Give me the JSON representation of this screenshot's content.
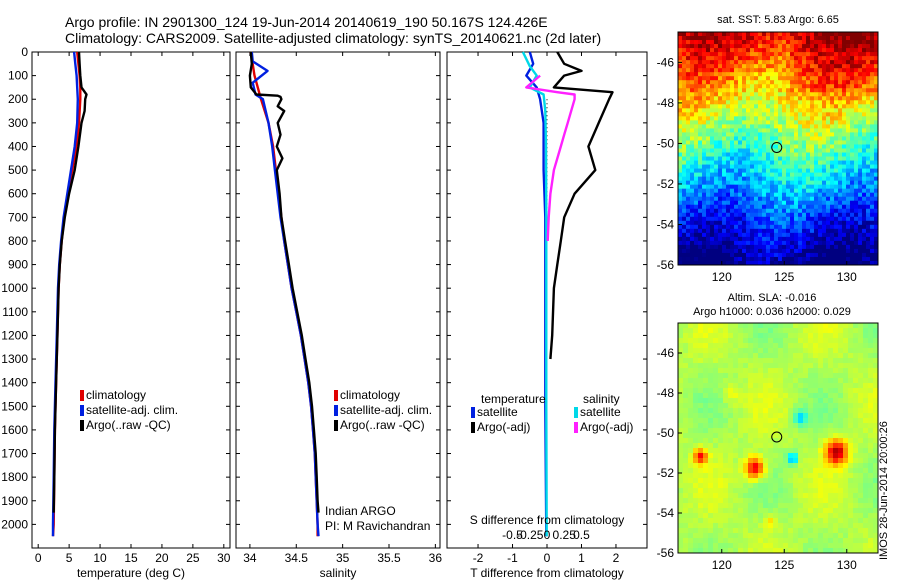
{
  "header": {
    "line1": "Argo profile: IN 2901300_124 19-Jun-2014 20140619_190 50.167S 124.426E",
    "line2": "Climatology: CARS2009. Satellite-adjusted climatology: synTS_20140621.nc (2d later)"
  },
  "stamp": "IMOS 28-Jun-2014 20:00:26",
  "colors": {
    "climatology": "#e00000",
    "satellite_clim": "#0020e0",
    "argo": "#000000",
    "satellite_S": "#00d8e8",
    "argo_S": "#ff20ff"
  },
  "chart_data": [
    {
      "type": "line",
      "panel": "temperature",
      "xlabel": "temperature (deg C)",
      "ylabel": "",
      "xlim": [
        -1,
        31
      ],
      "ylim": [
        2100,
        0
      ],
      "xticks": [
        "0",
        "5",
        "10",
        "15",
        "20",
        "25",
        "30"
      ],
      "yticks": [
        "0",
        "100",
        "200",
        "300",
        "400",
        "500",
        "600",
        "700",
        "800",
        "900",
        "1000",
        "1100",
        "1200",
        "1300",
        "1400",
        "1500",
        "1600",
        "1700",
        "1800",
        "1900",
        "2000"
      ],
      "legend": [
        "climatology",
        "satellite-adj. clim.",
        "Argo(..raw -QC)"
      ],
      "series": [
        {
          "name": "climatology",
          "color": "#e00000",
          "points": [
            [
              6.3,
              0
            ],
            [
              6.5,
              50
            ],
            [
              6.7,
              100
            ],
            [
              6.8,
              150
            ],
            [
              6.8,
              200
            ],
            [
              6.6,
              300
            ],
            [
              6.2,
              400
            ],
            [
              5.5,
              500
            ],
            [
              4.8,
              600
            ],
            [
              4.2,
              700
            ],
            [
              3.8,
              800
            ],
            [
              3.5,
              900
            ],
            [
              3.3,
              1000
            ],
            [
              3.1,
              1200
            ],
            [
              2.9,
              1400
            ],
            [
              2.7,
              1600
            ],
            [
              2.6,
              1800
            ],
            [
              2.5,
              2000
            ],
            [
              2.4,
              2050
            ]
          ]
        },
        {
          "name": "satellite-adj. clim.",
          "color": "#0020e0",
          "points": [
            [
              5.8,
              0
            ],
            [
              6.0,
              50
            ],
            [
              6.2,
              100
            ],
            [
              6.3,
              150
            ],
            [
              6.4,
              200
            ],
            [
              6.3,
              300
            ],
            [
              5.9,
              400
            ],
            [
              5.3,
              500
            ],
            [
              4.7,
              600
            ],
            [
              4.1,
              700
            ],
            [
              3.7,
              800
            ],
            [
              3.4,
              900
            ],
            [
              3.2,
              1000
            ],
            [
              3.0,
              1200
            ],
            [
              2.8,
              1400
            ],
            [
              2.6,
              1600
            ],
            [
              2.5,
              1800
            ],
            [
              2.4,
              2000
            ],
            [
              2.4,
              2050
            ]
          ]
        },
        {
          "name": "Argo(..raw -QC)",
          "color": "#000000",
          "points": [
            [
              6.6,
              0
            ],
            [
              6.7,
              50
            ],
            [
              6.8,
              100
            ],
            [
              7.0,
              150
            ],
            [
              7.8,
              180
            ],
            [
              7.6,
              200
            ],
            [
              7.5,
              250
            ],
            [
              7.0,
              300
            ],
            [
              6.5,
              400
            ],
            [
              5.9,
              500
            ],
            [
              5.0,
              600
            ],
            [
              4.3,
              700
            ],
            [
              3.8,
              800
            ],
            [
              3.5,
              900
            ],
            [
              3.3,
              1000
            ],
            [
              3.1,
              1200
            ],
            [
              2.9,
              1400
            ],
            [
              2.7,
              1600
            ],
            [
              2.6,
              1800
            ],
            [
              2.5,
              1950
            ]
          ]
        }
      ]
    },
    {
      "type": "line",
      "panel": "salinity",
      "xlabel": "salinity",
      "ylabel": "",
      "xlim": [
        33.85,
        36.05
      ],
      "ylim": [
        2100,
        0
      ],
      "xticks": [
        "34",
        "34.5",
        "35",
        "35.5",
        "36"
      ],
      "legend": [
        "climatology",
        "satellite-adj. clim.",
        "Argo(..raw -QC)"
      ],
      "annotation": [
        "Indian ARGO",
        "PI: M Ravichandran"
      ],
      "series": [
        {
          "name": "climatology",
          "color": "#e00000",
          "points": [
            [
              34.01,
              0
            ],
            [
              34.05,
              100
            ],
            [
              34.12,
              200
            ],
            [
              34.2,
              300
            ],
            [
              34.25,
              400
            ],
            [
              34.28,
              500
            ],
            [
              34.31,
              600
            ],
            [
              34.34,
              700
            ],
            [
              34.37,
              800
            ],
            [
              34.41,
              900
            ],
            [
              34.45,
              1000
            ],
            [
              34.5,
              1100
            ],
            [
              34.55,
              1200
            ],
            [
              34.59,
              1300
            ],
            [
              34.63,
              1400
            ],
            [
              34.66,
              1500
            ],
            [
              34.68,
              1600
            ],
            [
              34.7,
              1700
            ],
            [
              34.71,
              1800
            ],
            [
              34.72,
              1900
            ],
            [
              34.73,
              2000
            ],
            [
              34.73,
              2050
            ]
          ]
        },
        {
          "name": "satellite-adj. clim.",
          "color": "#0020e0",
          "points": [
            [
              34.02,
              0
            ],
            [
              34.03,
              40
            ],
            [
              34.19,
              80
            ],
            [
              34.03,
              130
            ],
            [
              34.06,
              180
            ],
            [
              34.14,
              200
            ],
            [
              34.2,
              300
            ],
            [
              34.24,
              400
            ],
            [
              34.27,
              500
            ],
            [
              34.3,
              600
            ],
            [
              34.33,
              700
            ],
            [
              34.37,
              800
            ],
            [
              34.41,
              900
            ],
            [
              34.45,
              1000
            ],
            [
              34.5,
              1100
            ],
            [
              34.55,
              1200
            ],
            [
              34.59,
              1300
            ],
            [
              34.63,
              1400
            ],
            [
              34.66,
              1500
            ],
            [
              34.68,
              1600
            ],
            [
              34.7,
              1700
            ],
            [
              34.71,
              1800
            ],
            [
              34.72,
              1900
            ],
            [
              34.73,
              2000
            ],
            [
              34.74,
              2050
            ]
          ]
        },
        {
          "name": "Argo(..raw -QC)",
          "color": "#000000",
          "points": [
            [
              34.01,
              0
            ],
            [
              34.02,
              50
            ],
            [
              34.0,
              100
            ],
            [
              34.01,
              150
            ],
            [
              34.07,
              180
            ],
            [
              34.3,
              185
            ],
            [
              34.33,
              190
            ],
            [
              34.34,
              200
            ],
            [
              34.3,
              230
            ],
            [
              34.37,
              250
            ],
            [
              34.3,
              300
            ],
            [
              34.33,
              350
            ],
            [
              34.29,
              400
            ],
            [
              34.35,
              450
            ],
            [
              34.29,
              500
            ],
            [
              34.32,
              600
            ],
            [
              34.34,
              700
            ],
            [
              34.38,
              800
            ],
            [
              34.42,
              900
            ],
            [
              34.46,
              1000
            ],
            [
              34.51,
              1100
            ],
            [
              34.56,
              1200
            ],
            [
              34.6,
              1300
            ],
            [
              34.64,
              1400
            ],
            [
              34.67,
              1500
            ],
            [
              34.69,
              1600
            ],
            [
              34.71,
              1700
            ],
            [
              34.72,
              1800
            ],
            [
              34.73,
              1900
            ],
            [
              34.74,
              1950
            ]
          ]
        }
      ]
    },
    {
      "type": "line",
      "panel": "differences",
      "xlabel": "T difference from climatology",
      "xlabel_top": "S difference from climatology",
      "xlim": [
        -2.9,
        2.9
      ],
      "ylim": [
        2100,
        0
      ],
      "xticks": [
        "-2",
        "-1",
        "0",
        "1",
        "2"
      ],
      "xticks_S": [
        "-0.5",
        "-0.25",
        "0",
        "0.25",
        "0.5"
      ],
      "legend_titles": [
        "temperature",
        "salinity"
      ],
      "legend": [
        "satellite",
        "Argo(-adj)",
        "satellite",
        "Argo(-adj)"
      ],
      "series": [
        {
          "name": "satellite",
          "color": "#0020e0",
          "points": [
            [
              -0.5,
              0
            ],
            [
              -0.4,
              50
            ],
            [
              -0.6,
              100
            ],
            [
              -0.3,
              150
            ],
            [
              -0.2,
              200
            ],
            [
              -0.1,
              300
            ],
            [
              -0.1,
              400
            ],
            [
              -0.1,
              500
            ],
            [
              -0.05,
              700
            ],
            [
              -0.05,
              1000
            ],
            [
              -0.05,
              1500
            ],
            [
              -0.02,
              2050
            ]
          ]
        },
        {
          "name": "Argo(-adj)",
          "color": "#000000",
          "points": [
            [
              0.3,
              0
            ],
            [
              0.5,
              50
            ],
            [
              1.0,
              80
            ],
            [
              0.5,
              100
            ],
            [
              0.2,
              150
            ],
            [
              1.9,
              170
            ],
            [
              1.8,
              200
            ],
            [
              1.5,
              300
            ],
            [
              1.2,
              400
            ],
            [
              1.4,
              500
            ],
            [
              0.8,
              600
            ],
            [
              0.5,
              700
            ],
            [
              0.4,
              800
            ],
            [
              0.3,
              900
            ],
            [
              0.2,
              1000
            ],
            [
              0.15,
              1200
            ],
            [
              0.1,
              1300
            ]
          ]
        },
        {
          "name": "satellite",
          "color": "#00d8e8",
          "points": [
            [
              -0.7,
              0
            ],
            [
              -0.5,
              60
            ],
            [
              -0.3,
              100
            ],
            [
              -0.5,
              150
            ],
            [
              -0.1,
              180
            ],
            [
              -0.05,
              250
            ],
            [
              -0.03,
              400
            ],
            [
              -0.02,
              700
            ],
            [
              -0.02,
              1000
            ],
            [
              -0.02,
              1500
            ],
            [
              -0.01,
              2050
            ]
          ]
        },
        {
          "name": "Argo(-adj)",
          "color": "#ff20ff",
          "points": [
            [
              -0.2,
              100
            ],
            [
              -0.6,
              150
            ],
            [
              0.3,
              170
            ],
            [
              0.8,
              180
            ],
            [
              0.8,
              200
            ],
            [
              0.6,
              300
            ],
            [
              0.5,
              350
            ],
            [
              0.4,
              400
            ],
            [
              0.2,
              500
            ],
            [
              0.1,
              600
            ],
            [
              0.05,
              700
            ],
            [
              0.02,
              800
            ]
          ]
        }
      ]
    },
    {
      "type": "heatmap",
      "panel": "sst-map",
      "title": "sat. SST: 5.83 Argo: 6.65",
      "xlim": [
        116.5,
        132.5
      ],
      "ylim": [
        -56,
        -44.5
      ],
      "xticks": [
        "120",
        "125",
        "130"
      ],
      "yticks": [
        "-46",
        "-48",
        "-50",
        "-52",
        "-54",
        "-56"
      ],
      "marker": [
        124.4,
        -50.2
      ]
    },
    {
      "type": "heatmap",
      "panel": "sla-map",
      "title": "Altim. SLA: -0.016",
      "subtitle": "Argo h1000: 0.036 h2000: 0.029",
      "xlim": [
        116.5,
        132.5
      ],
      "ylim": [
        -56,
        -44.5
      ],
      "xticks": [
        "120",
        "125",
        "130"
      ],
      "yticks": [
        "-46",
        "-48",
        "-50",
        "-52",
        "-54",
        "-56"
      ],
      "marker": [
        124.4,
        -50.2
      ]
    }
  ]
}
